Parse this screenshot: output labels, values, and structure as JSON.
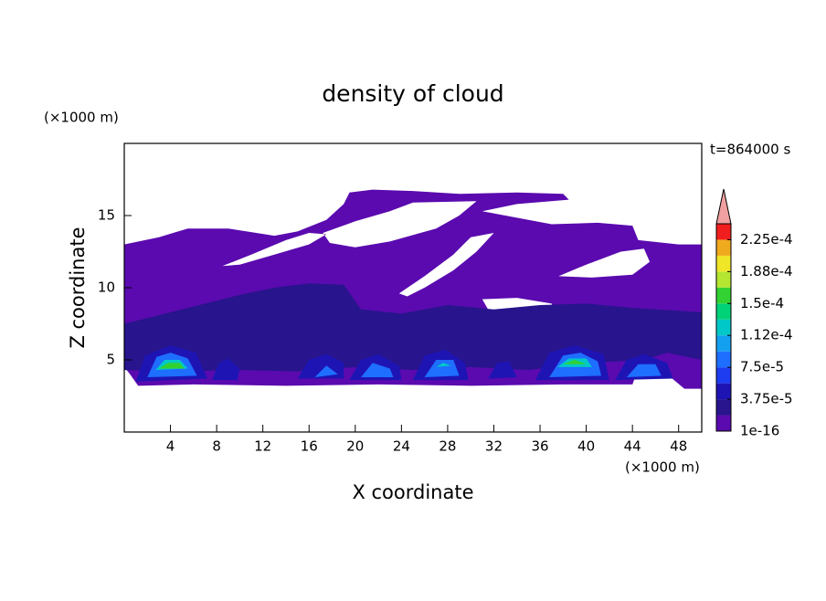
{
  "chart_data": {
    "type": "contour",
    "title": "density of cloud",
    "x_label": "X coordinate",
    "y_label": "Z coordinate",
    "x_unit": "(×1000 m)",
    "y_unit": "(×1000 m)",
    "time_label": "t=864000 s",
    "xlim": [
      0,
      50
    ],
    "ylim": [
      0,
      20
    ],
    "xticks": [
      4,
      8,
      12,
      16,
      20,
      24,
      28,
      32,
      36,
      40,
      44,
      48
    ],
    "yticks": [
      5,
      10,
      15
    ],
    "colorbar": {
      "bounds": [
        1e-16,
        1.875e-05,
        3.75e-05,
        5.625e-05,
        7.5e-05,
        9.375e-05,
        0.0001125,
        0.00013125,
        0.00015,
        0.00016875,
        0.0001875,
        0.00020625,
        0.000225,
        0.00024375
      ],
      "colors": [
        "#5a0aaf",
        "#28148c",
        "#1e14b4",
        "#1e3cf0",
        "#1e6eff",
        "#14a0f0",
        "#00c8c8",
        "#00d278",
        "#32d232",
        "#b4e632",
        "#f0e628",
        "#f0aa1e",
        "#f01e1e"
      ],
      "extend_color": "#f0a0a0",
      "ticks": [
        1e-16,
        {
          "value": 3.75e-05,
          "label": "3.75e-5"
        },
        {
          "value": 7.5e-05,
          "label": "7.5e-5"
        },
        {
          "value": 0.0001125,
          "label": "1.12e-4"
        },
        {
          "value": 0.00015,
          "label": "1.5e-4"
        },
        {
          "value": 0.0001875,
          "label": "1.88e-4"
        },
        {
          "value": 0.000225,
          "label": "2.25e-4"
        }
      ]
    },
    "regions": [
      {
        "level": 1e-16,
        "rings": [
          [
            [
              0,
              13
            ],
            [
              3,
              13.5
            ],
            [
              5.5,
              14.1
            ],
            [
              9,
              14.1
            ],
            [
              13,
              13.6
            ],
            [
              15,
              13.9
            ],
            [
              17.5,
              14.7
            ],
            [
              19,
              15.8
            ],
            [
              19.5,
              16.6
            ],
            [
              21.5,
              16.8
            ],
            [
              25,
              16.7
            ],
            [
              29,
              16.5
            ],
            [
              34,
              16.6
            ],
            [
              38,
              16.5
            ],
            [
              38.5,
              16.1
            ],
            [
              34,
              15.8
            ],
            [
              31,
              15.3
            ],
            [
              37,
              14.4
            ],
            [
              41,
              14.5
            ],
            [
              44,
              14.3
            ],
            [
              44.5,
              13.3
            ],
            [
              48,
              13
            ],
            [
              50,
              13
            ],
            [
              50,
              3
            ],
            [
              48.5,
              3
            ],
            [
              47,
              4
            ],
            [
              45,
              5.5
            ],
            [
              44,
              3.3
            ],
            [
              38,
              3.3
            ],
            [
              30,
              3.2
            ],
            [
              22,
              3.3
            ],
            [
              14,
              3.2
            ],
            [
              6,
              3.3
            ],
            [
              1.2,
              3.2
            ],
            [
              0.5,
              4
            ],
            [
              0,
              4.5
            ]
          ],
          [
            [
              8.5,
              11.5
            ],
            [
              11,
              12.3
            ],
            [
              14,
              13.3
            ],
            [
              16,
              13.8
            ],
            [
              17.5,
              13.7
            ],
            [
              16,
              13
            ],
            [
              13,
              12.3
            ],
            [
              10,
              11.6
            ]
          ],
          [
            [
              17.2,
              13.8
            ],
            [
              20,
              14.6
            ],
            [
              23,
              15.3
            ],
            [
              25,
              15.9
            ],
            [
              30.5,
              16
            ],
            [
              29,
              15
            ],
            [
              27,
              14.1
            ],
            [
              23,
              13.2
            ],
            [
              20,
              12.8
            ],
            [
              17.8,
              13.1
            ]
          ],
          [
            [
              23.8,
              9.6
            ],
            [
              26,
              10.8
            ],
            [
              28.5,
              12.3
            ],
            [
              30,
              13.5
            ],
            [
              32,
              13.8
            ],
            [
              30.5,
              12.5
            ],
            [
              28.5,
              11.2
            ],
            [
              26,
              10
            ],
            [
              24.5,
              9.4
            ]
          ],
          [
            [
              37.6,
              10.8
            ],
            [
              40,
              11.6
            ],
            [
              43,
              12.5
            ],
            [
              45,
              12.7
            ],
            [
              45.5,
              11.8
            ],
            [
              44,
              10.9
            ],
            [
              40.5,
              10.7
            ]
          ],
          [
            [
              31,
              9.2
            ],
            [
              34,
              9.3
            ],
            [
              37,
              8.9
            ],
            [
              37.5,
              7.8
            ],
            [
              34,
              7.2
            ],
            [
              32,
              7.8
            ]
          ]
        ]
      },
      {
        "level": 1.875e-05,
        "rings": [
          [
            [
              0,
              7.5
            ],
            [
              5,
              8.5
            ],
            [
              10,
              9.5
            ],
            [
              13,
              10
            ],
            [
              16,
              10.3
            ],
            [
              19,
              10.2
            ],
            [
              20.5,
              8.5
            ],
            [
              24,
              8.2
            ],
            [
              28,
              8.8
            ],
            [
              32,
              8.5
            ],
            [
              36,
              8.8
            ],
            [
              40,
              8.9
            ],
            [
              44,
              8.6
            ],
            [
              48,
              8.4
            ],
            [
              50,
              8.3
            ],
            [
              50,
              5
            ],
            [
              47,
              5.5
            ],
            [
              45,
              5
            ],
            [
              40,
              4.8
            ],
            [
              35,
              4.3
            ],
            [
              30,
              4.5
            ],
            [
              25,
              4.3
            ],
            [
              20,
              4.5
            ],
            [
              15,
              4.2
            ],
            [
              10,
              4.3
            ],
            [
              5,
              4.2
            ],
            [
              0,
              4.3
            ]
          ]
        ]
      },
      {
        "level": 3.75e-05,
        "rings": [
          [
            [
              1,
              3.5
            ],
            [
              1.8,
              5.3
            ],
            [
              4,
              6
            ],
            [
              6.2,
              5.5
            ],
            [
              7.2,
              3.7
            ]
          ],
          [
            [
              7.6,
              3.6
            ],
            [
              8.2,
              4.8
            ],
            [
              9,
              5.1
            ],
            [
              10,
              4.4
            ],
            [
              9.8,
              3.6
            ]
          ],
          [
            [
              15,
              3.7
            ],
            [
              16,
              5
            ],
            [
              17.5,
              5.4
            ],
            [
              19,
              4.8
            ],
            [
              19,
              3.7
            ]
          ],
          [
            [
              19.5,
              3.6
            ],
            [
              20.5,
              5
            ],
            [
              22,
              5.4
            ],
            [
              23.8,
              4.6
            ],
            [
              24,
              3.6
            ]
          ],
          [
            [
              25,
              3.6
            ],
            [
              26,
              5.3
            ],
            [
              27.8,
              5.7
            ],
            [
              29.5,
              4.8
            ],
            [
              29.8,
              3.6
            ]
          ],
          [
            [
              31.5,
              3.7
            ],
            [
              32.3,
              4.8
            ],
            [
              33.3,
              4.9
            ],
            [
              34,
              3.8
            ]
          ],
          [
            [
              35.6,
              3.6
            ],
            [
              36.8,
              5.5
            ],
            [
              39,
              6
            ],
            [
              41.5,
              5.4
            ],
            [
              42,
              3.6
            ]
          ],
          [
            [
              42.5,
              3.6
            ],
            [
              43.5,
              5
            ],
            [
              45,
              5.4
            ],
            [
              47,
              4.8
            ],
            [
              47.5,
              3.7
            ]
          ]
        ]
      },
      {
        "level": 7.5e-05,
        "rings": [
          [
            [
              2,
              3.8
            ],
            [
              2.8,
              5.2
            ],
            [
              4,
              5.5
            ],
            [
              5.5,
              5.1
            ],
            [
              6.3,
              3.9
            ]
          ],
          [
            [
              16.5,
              3.8
            ],
            [
              17.5,
              4.6
            ],
            [
              18.5,
              4
            ]
          ],
          [
            [
              20.5,
              3.8
            ],
            [
              21.5,
              4.8
            ],
            [
              23,
              4.4
            ],
            [
              23.3,
              3.8
            ]
          ],
          [
            [
              26,
              3.8
            ],
            [
              27,
              5
            ],
            [
              28.5,
              5
            ],
            [
              29,
              3.9
            ]
          ],
          [
            [
              36.8,
              3.8
            ],
            [
              38,
              5.3
            ],
            [
              39.5,
              5.5
            ],
            [
              41,
              4.9
            ],
            [
              41.3,
              3.9
            ]
          ],
          [
            [
              43.5,
              3.8
            ],
            [
              44.5,
              4.7
            ],
            [
              46,
              4.7
            ],
            [
              46.5,
              3.9
            ]
          ]
        ]
      },
      {
        "level": 0.0001125,
        "rings": [
          [
            [
              2.7,
              4.3
            ],
            [
              3.5,
              5
            ],
            [
              4.8,
              5
            ],
            [
              5.5,
              4.4
            ]
          ],
          [
            [
              37.5,
              4.5
            ],
            [
              38.5,
              5.1
            ],
            [
              40,
              5.1
            ],
            [
              40.5,
              4.5
            ]
          ],
          [
            [
              27,
              4.5
            ],
            [
              27.6,
              4.8
            ],
            [
              28.3,
              4.6
            ]
          ]
        ]
      },
      {
        "level": 0.00015,
        "rings": [
          [
            [
              3,
              4.4
            ],
            [
              3.8,
              4.8
            ],
            [
              4.8,
              4.8
            ],
            [
              5.2,
              4.4
            ]
          ],
          [
            [
              38,
              4.7
            ],
            [
              39,
              5
            ],
            [
              40,
              4.7
            ]
          ]
        ]
      }
    ]
  }
}
